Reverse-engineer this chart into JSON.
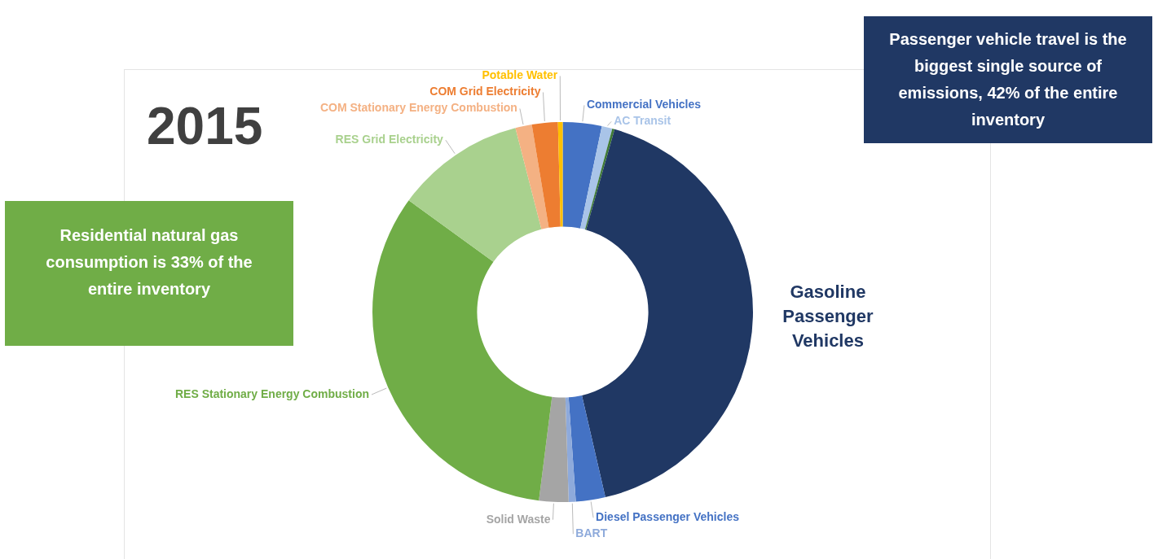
{
  "chart_data": {
    "type": "donut",
    "title": "2015",
    "categories": [
      "Commercial Vehicles",
      "AC Transit",
      null,
      "Gasoline Passenger Vehicles",
      "Diesel Passenger Vehicles",
      "BART",
      "Solid Waste",
      "RES Stationary Energy Combustion",
      "RES Grid Electricity",
      "COM Stationary Energy Combustion",
      "COM Grid Electricity",
      "Potable Water"
    ],
    "values": [
      3.3,
      0.9,
      0.2,
      42,
      2.5,
      0.6,
      2.5,
      33,
      11,
      1.4,
      2.2,
      0.4
    ],
    "colors": [
      "#4472c4",
      "#a9c4e8",
      "#3f7a35",
      "#203864",
      "#4472c4",
      "#8eaadb",
      "#a5a5a5",
      "#70ad47",
      "#a9d18e",
      "#f4b183",
      "#ed7d31",
      "#ffc000"
    ],
    "annotations": [
      "Passenger vehicle travel is the biggest single source of emissions, 42% of the entire inventory",
      "Residential natural gas consumption is 33% of the entire inventory"
    ]
  }
}
